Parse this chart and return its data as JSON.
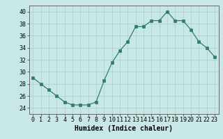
{
  "x": [
    0,
    1,
    2,
    3,
    4,
    5,
    6,
    7,
    8,
    9,
    10,
    11,
    12,
    13,
    14,
    15,
    16,
    17,
    18,
    19,
    20,
    21,
    22,
    23
  ],
  "y": [
    29,
    28,
    27,
    26,
    25,
    24.5,
    24.5,
    24.5,
    25,
    28.5,
    31.5,
    33.5,
    35,
    37.5,
    37.5,
    38.5,
    38.5,
    40,
    38.5,
    38.5,
    37,
    35,
    34,
    32.5
  ],
  "xlabel": "Humidex (Indice chaleur)",
  "ylim": [
    23,
    41
  ],
  "xlim": [
    -0.5,
    23.5
  ],
  "yticks": [
    24,
    26,
    28,
    30,
    32,
    34,
    36,
    38,
    40
  ],
  "xticks": [
    0,
    1,
    2,
    3,
    4,
    5,
    6,
    7,
    8,
    9,
    10,
    11,
    12,
    13,
    14,
    15,
    16,
    17,
    18,
    19,
    20,
    21,
    22,
    23
  ],
  "line_color": "#2e7d6e",
  "marker_color": "#2e7d6e",
  "bg_color": "#c8e8e8",
  "grid_color": "#a8cccc",
  "xlabel_fontsize": 7,
  "tick_fontsize": 6
}
